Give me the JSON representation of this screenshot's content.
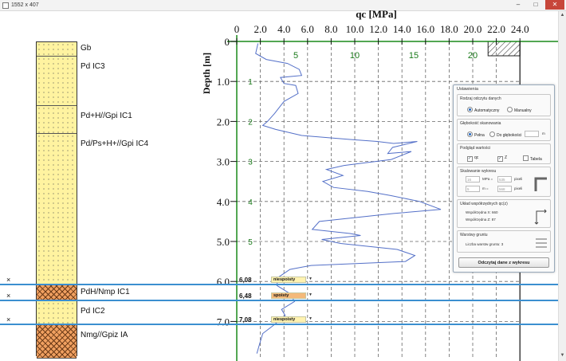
{
  "window": {
    "title": "1552 x 407",
    "minimize": "–",
    "maximize": "□",
    "close": "✕"
  },
  "scroll": {
    "up": "▲",
    "down": "▼"
  },
  "soil_layers": [
    {
      "name": "Gb",
      "top_m": 0.0,
      "bottom_m": 0.35,
      "pattern": "dots"
    },
    {
      "name": "Pd  IC3",
      "top_m": 0.35,
      "bottom_m": 1.6,
      "pattern": "dots"
    },
    {
      "name": "Pd+H//Gpi  IC1",
      "top_m": 1.6,
      "bottom_m": 2.3,
      "pattern": "dots"
    },
    {
      "name": "Pd/Ps+H+//Gpi  IC4",
      "top_m": 2.3,
      "bottom_m": 6.08,
      "pattern": "dots"
    },
    {
      "name": "PdH/Nmp  IC1",
      "top_m": 6.08,
      "bottom_m": 6.48,
      "pattern": "hatch"
    },
    {
      "name": "Pd  IC2",
      "top_m": 6.48,
      "bottom_m": 7.08,
      "pattern": "dots"
    },
    {
      "name": "Nmg//Gpiz  IA",
      "top_m": 7.08,
      "bottom_m": 7.9,
      "pattern": "hatch"
    }
  ],
  "boundaries": [
    {
      "depth_m": 6.08,
      "label": "6,08",
      "dropdown": "niespoisty",
      "color": "#fff2b0",
      "x_mark": "×"
    },
    {
      "depth_m": 6.48,
      "label": "6,48",
      "dropdown": "spoisty",
      "color": "#f4b97a",
      "x_mark": "×"
    },
    {
      "depth_m": 7.08,
      "label": "7,08",
      "dropdown": "niespoisty",
      "color": "#fff2b0",
      "x_mark": "×"
    }
  ],
  "chart_data": {
    "type": "line",
    "title": "qc [MPa]",
    "ylabel": "Depth [m]",
    "xlim": [
      0,
      24
    ],
    "ylim": [
      0,
      7.8
    ],
    "x_ticks_top": [
      "0",
      "2.0",
      "4.0",
      "6.0",
      "8.0",
      "10.0",
      "12.0",
      "14.0",
      "16.0",
      "18.0",
      "20.0",
      "22.0",
      "24.0"
    ],
    "x_ticks_inner": [
      "5",
      "10",
      "15",
      "20"
    ],
    "y_ticks": [
      "0",
      "1.0",
      "2.0",
      "3.0",
      "4.0",
      "5.0",
      "6.0",
      "7.0"
    ],
    "inner_y_ticks": [
      "1",
      "2",
      "3",
      "4",
      "5"
    ],
    "series": [
      {
        "name": "",
        "points": [
          [
            1.8,
            0.05
          ],
          [
            1.6,
            0.3
          ],
          [
            2.5,
            0.45
          ],
          [
            4.3,
            0.55
          ],
          [
            5.3,
            0.7
          ],
          [
            5.5,
            0.85
          ],
          [
            3.7,
            0.9
          ],
          [
            4.0,
            1.05
          ],
          [
            5.0,
            1.1
          ],
          [
            5.2,
            1.3
          ],
          [
            4.0,
            1.5
          ],
          [
            3.2,
            1.8
          ],
          [
            2.6,
            2.0
          ],
          [
            2.2,
            2.1
          ],
          [
            3.3,
            2.2
          ],
          [
            5.5,
            2.35
          ],
          [
            9.6,
            2.45
          ],
          [
            11.9,
            2.5
          ],
          [
            13.3,
            2.55
          ],
          [
            15.3,
            2.5
          ],
          [
            13.2,
            2.65
          ],
          [
            12.8,
            2.8
          ],
          [
            14.8,
            2.75
          ],
          [
            13.1,
            2.95
          ],
          [
            9.1,
            3.1
          ],
          [
            7.6,
            3.2
          ],
          [
            9.0,
            3.35
          ],
          [
            7.3,
            3.5
          ],
          [
            8.2,
            3.65
          ],
          [
            11.1,
            3.75
          ],
          [
            13.0,
            3.85
          ],
          [
            15.5,
            4.0
          ],
          [
            17.3,
            4.2
          ],
          [
            13.3,
            4.3
          ],
          [
            7.0,
            4.5
          ],
          [
            6.4,
            4.7
          ],
          [
            9.6,
            4.8
          ],
          [
            10.5,
            4.85
          ],
          [
            7.2,
            4.95
          ],
          [
            8.8,
            5.05
          ],
          [
            13.6,
            5.2
          ],
          [
            15.1,
            5.35
          ],
          [
            14.3,
            5.5
          ],
          [
            6.3,
            5.6
          ],
          [
            4.5,
            5.7
          ],
          [
            3.5,
            5.9
          ],
          [
            3.4,
            6.1
          ],
          [
            4.5,
            6.3
          ],
          [
            4.9,
            6.5
          ],
          [
            3.8,
            6.7
          ],
          [
            4.1,
            6.85
          ],
          [
            3.1,
            7.1
          ],
          [
            2.2,
            7.3
          ],
          [
            1.9,
            7.6
          ],
          [
            1.7,
            7.8
          ]
        ]
      }
    ]
  },
  "settings_panel": {
    "title": "Ustawienia",
    "data_reading": {
      "title": "Rodzaj odczytu danych",
      "auto": "Automatyczny",
      "manual": "Manualny"
    },
    "scan_depth": {
      "title": "Głębokość skanowania",
      "full": "Pełna",
      "to_depth": "Do głębokości",
      "unit": "m"
    },
    "preview": {
      "title": "Podgląd wartości",
      "qc": "qc",
      "z": "Z",
      "table": "Tabela"
    },
    "scaling": {
      "title": "Skalowanie wykresu",
      "row1_val": "16",
      "row1_unit": "MPa =",
      "row1_px": "535",
      "row1_px_unit": "pixeli",
      "row2_val": "5",
      "row2_unit": "m =",
      "row2_px": "568",
      "row2_px_unit": "pixeli"
    },
    "coords": {
      "title": "Układ współrzędnych qc(z)",
      "x_label": "Współrzędna X: 660",
      "z_label": "Współrzędna Z: 87"
    },
    "soil": {
      "title": "Warstwy gruntu",
      "count_label": "Liczba warstw gruntu: 3"
    },
    "read_button": "Odczytaj dane z wykresu"
  }
}
